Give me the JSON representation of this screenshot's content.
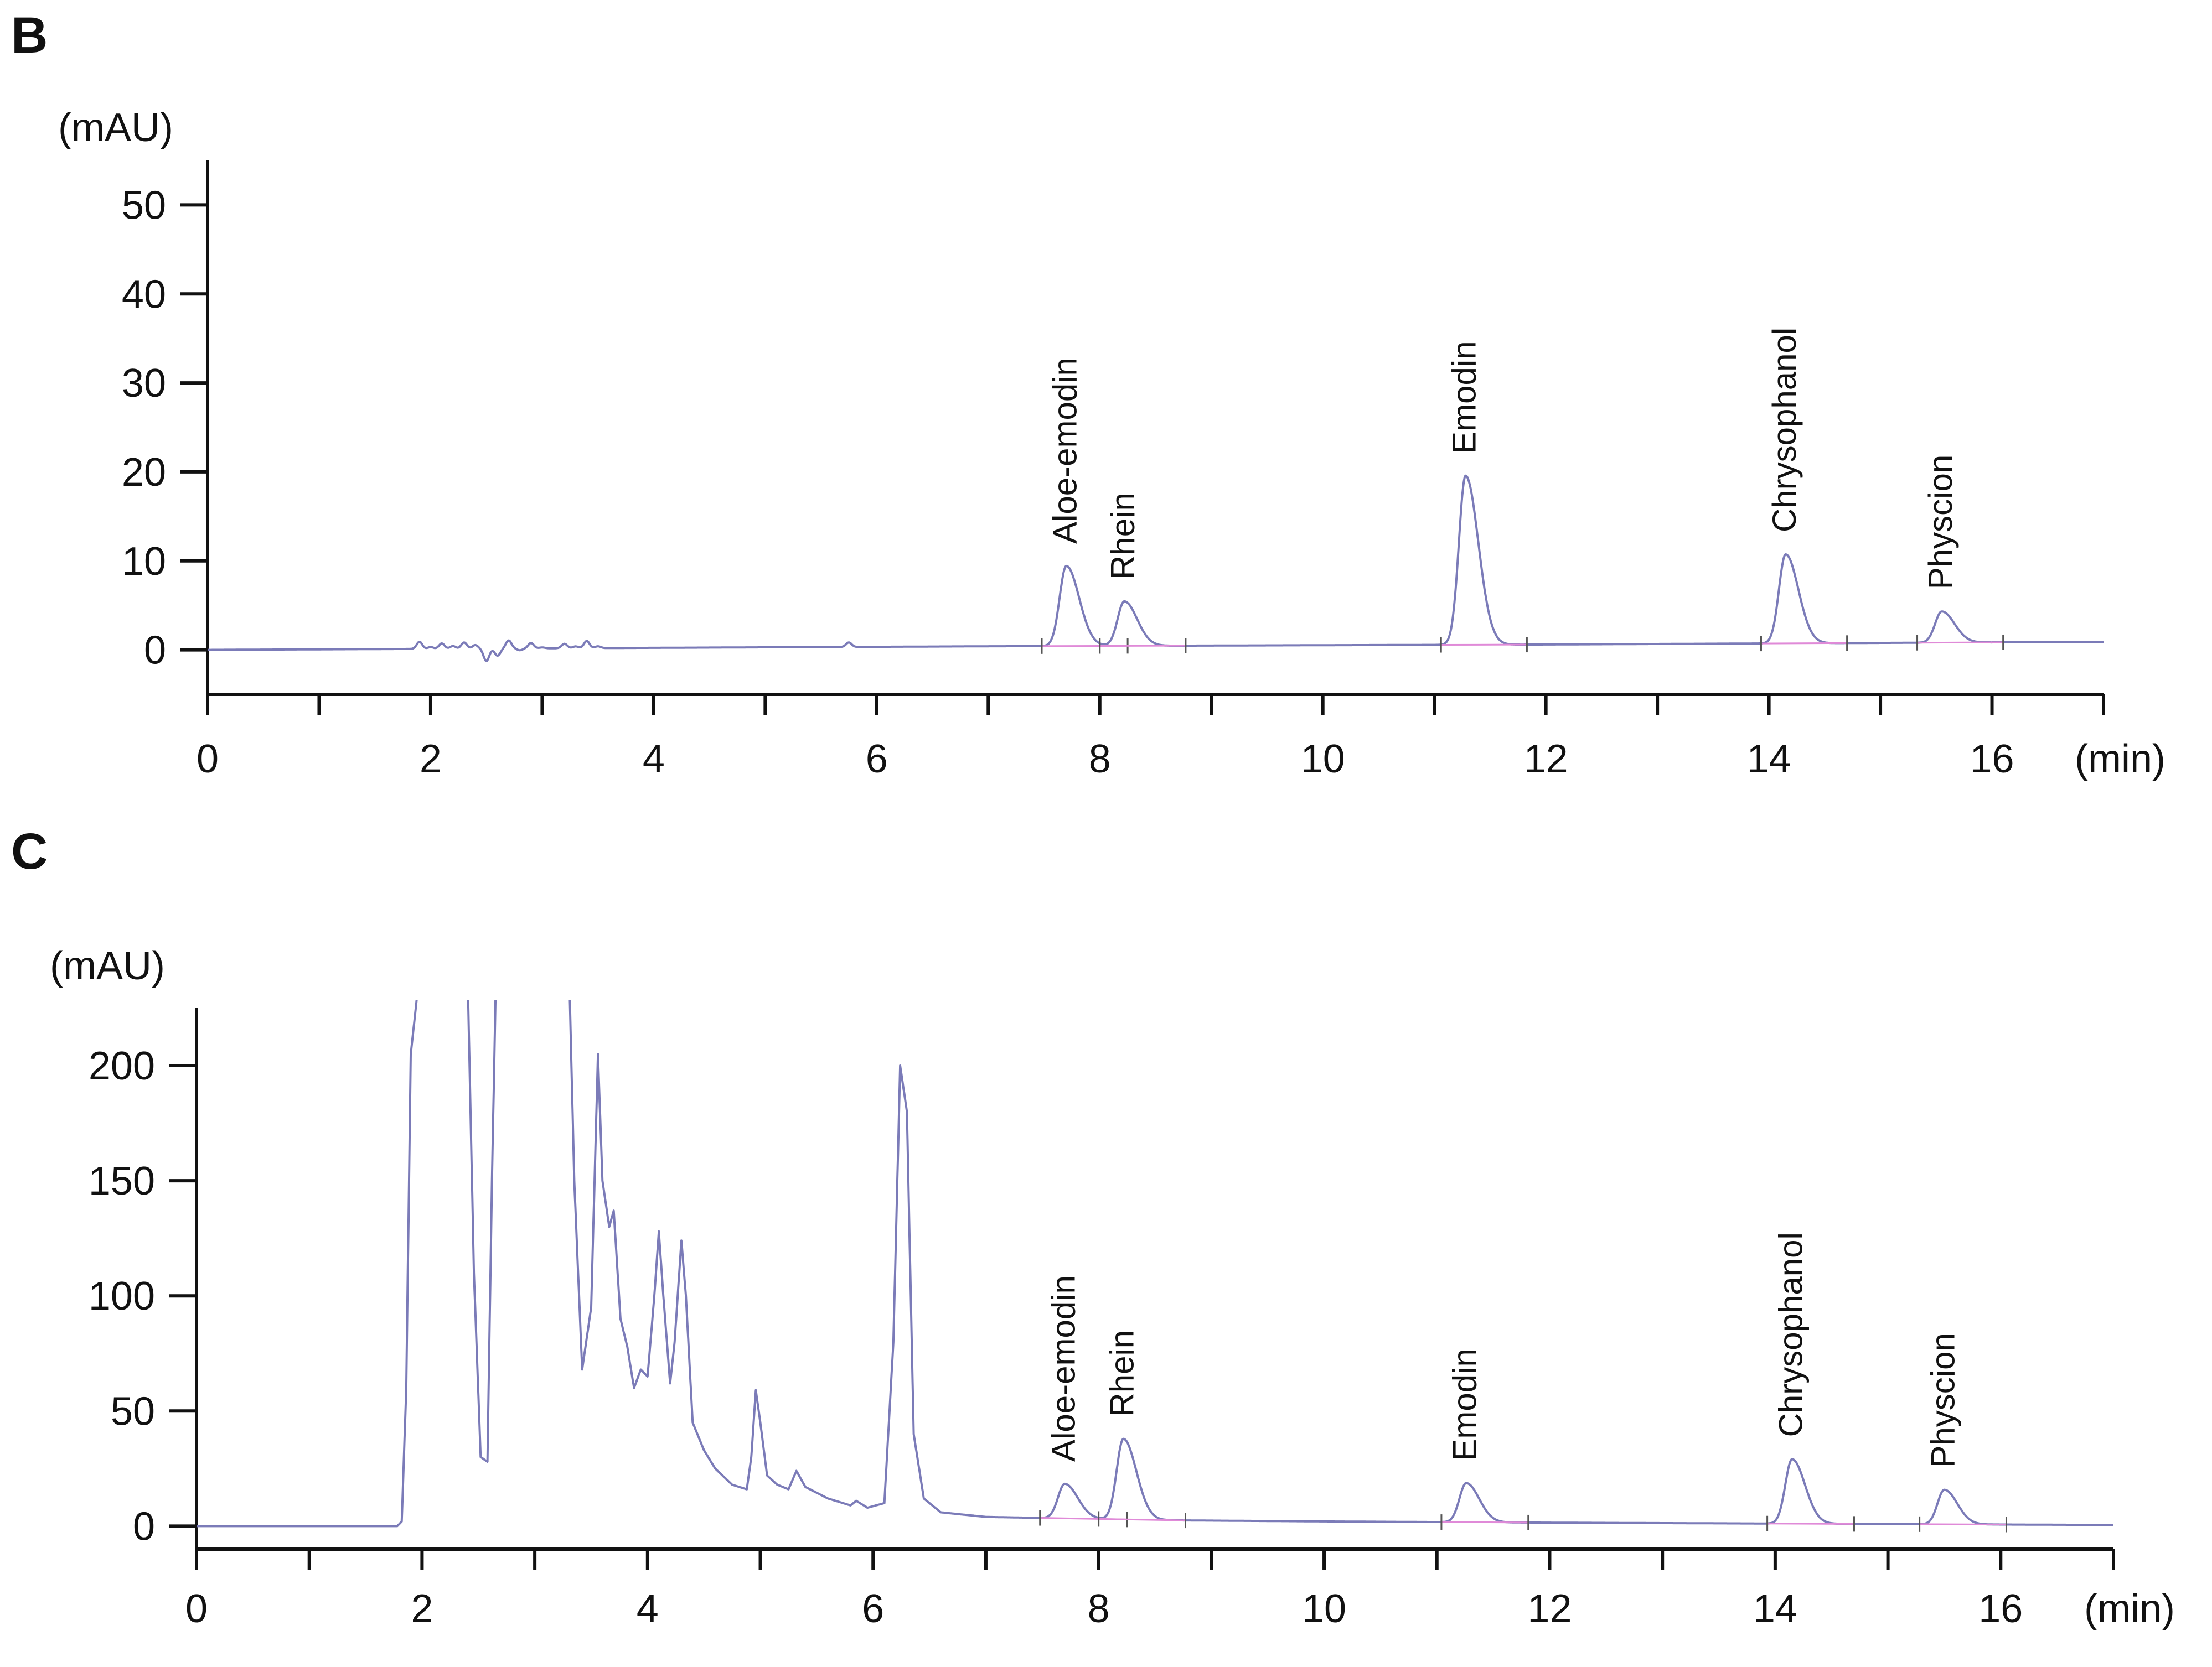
{
  "figure": {
    "colors": {
      "trace": "#7b7bb8",
      "integration_baseline": "#e08ad8",
      "axis": "#111111"
    }
  },
  "chart_data": [
    {
      "type": "line",
      "panel_label": "B",
      "title": "",
      "xlabel": "(min)",
      "ylabel": "(mAU)",
      "xlim": [
        0,
        17
      ],
      "ylim": [
        -5,
        55
      ],
      "x_ticks": [
        0,
        2,
        4,
        6,
        8,
        10,
        12,
        14,
        16
      ],
      "y_ticks": [
        0,
        10,
        20,
        30,
        40,
        50
      ],
      "grid": false,
      "baseline_drift": [
        [
          0,
          0
        ],
        [
          7,
          0.4
        ],
        [
          12,
          0.6
        ],
        [
          17,
          0.9
        ]
      ],
      "noise": [
        [
          1.9,
          0.8
        ],
        [
          2.0,
          0.2
        ],
        [
          2.1,
          0.6
        ],
        [
          2.2,
          0.3
        ],
        [
          2.3,
          0.7
        ],
        [
          2.4,
          0.4
        ],
        [
          2.5,
          -1.4
        ],
        [
          2.6,
          -0.8
        ],
        [
          2.7,
          0.9
        ],
        [
          2.8,
          -0.2
        ],
        [
          2.9,
          0.6
        ],
        [
          3.0,
          0.1
        ],
        [
          3.2,
          0.5
        ],
        [
          3.3,
          0.2
        ],
        [
          3.4,
          0.8
        ],
        [
          3.5,
          0.2
        ],
        [
          5.75,
          0.5
        ]
      ],
      "peaks": [
        {
          "name": "Aloe-emodin",
          "rt": 7.7,
          "height": 9.0,
          "width": 0.06
        },
        {
          "name": "Rhein",
          "rt": 8.22,
          "height": 5.0,
          "width": 0.06
        },
        {
          "name": "Emodin",
          "rt": 11.28,
          "height": 19.0,
          "width": 0.06
        },
        {
          "name": "Chrysophanol",
          "rt": 14.15,
          "height": 10.0,
          "width": 0.06
        },
        {
          "name": "Physcion",
          "rt": 15.55,
          "height": 3.5,
          "width": 0.06
        }
      ]
    },
    {
      "type": "line",
      "panel_label": "C",
      "title": "",
      "xlabel": "(min)",
      "ylabel": "(mAU)",
      "xlim": [
        0,
        17
      ],
      "ylim": [
        -10,
        225
      ],
      "x_ticks": [
        0,
        2,
        4,
        6,
        8,
        10,
        12,
        14,
        16
      ],
      "y_ticks": [
        0,
        50,
        100,
        150,
        200
      ],
      "grid": false,
      "profile": [
        [
          0,
          0
        ],
        [
          1.78,
          0
        ],
        [
          1.82,
          2
        ],
        [
          1.86,
          60
        ],
        [
          1.9,
          205
        ],
        [
          2.0,
          250
        ],
        [
          2.4,
          250
        ],
        [
          2.46,
          110
        ],
        [
          2.52,
          30
        ],
        [
          2.58,
          28
        ],
        [
          2.62,
          150
        ],
        [
          2.66,
          250
        ],
        [
          3.3,
          250
        ],
        [
          3.35,
          150
        ],
        [
          3.42,
          68
        ],
        [
          3.5,
          95
        ],
        [
          3.56,
          205
        ],
        [
          3.6,
          150
        ],
        [
          3.66,
          130
        ],
        [
          3.7,
          137
        ],
        [
          3.76,
          90
        ],
        [
          3.82,
          78
        ],
        [
          3.88,
          60
        ],
        [
          3.94,
          68
        ],
        [
          4.0,
          65
        ],
        [
          4.06,
          100
        ],
        [
          4.1,
          128
        ],
        [
          4.14,
          100
        ],
        [
          4.2,
          62
        ],
        [
          4.24,
          80
        ],
        [
          4.3,
          124
        ],
        [
          4.34,
          100
        ],
        [
          4.4,
          45
        ],
        [
          4.5,
          33
        ],
        [
          4.6,
          25
        ],
        [
          4.75,
          18
        ],
        [
          4.88,
          16
        ],
        [
          4.92,
          30
        ],
        [
          4.96,
          59
        ],
        [
          5.0,
          45
        ],
        [
          5.06,
          22
        ],
        [
          5.15,
          18
        ],
        [
          5.25,
          16
        ],
        [
          5.32,
          24
        ],
        [
          5.4,
          17
        ],
        [
          5.6,
          12
        ],
        [
          5.8,
          9
        ],
        [
          5.85,
          11
        ],
        [
          5.95,
          8
        ],
        [
          6.1,
          10
        ],
        [
          6.18,
          80
        ],
        [
          6.24,
          200
        ],
        [
          6.3,
          180
        ],
        [
          6.36,
          40
        ],
        [
          6.45,
          12
        ],
        [
          6.6,
          6
        ],
        [
          7.0,
          4
        ],
        [
          7.55,
          3.5
        ],
        [
          8.7,
          2.5
        ],
        [
          10.1,
          2
        ],
        [
          12.0,
          1.5
        ],
        [
          17,
          0.5
        ]
      ],
      "peaks": [
        {
          "name": "Aloe-emodin",
          "rt": 7.7,
          "height": 15,
          "width": 0.06
        },
        {
          "name": "Rhein",
          "rt": 8.22,
          "height": 35,
          "width": 0.06
        },
        {
          "name": "Emodin",
          "rt": 11.26,
          "height": 17,
          "width": 0.06
        },
        {
          "name": "Chrysophanol",
          "rt": 14.15,
          "height": 28,
          "width": 0.06
        },
        {
          "name": "Physcion",
          "rt": 15.5,
          "height": 15,
          "width": 0.06
        }
      ]
    }
  ]
}
